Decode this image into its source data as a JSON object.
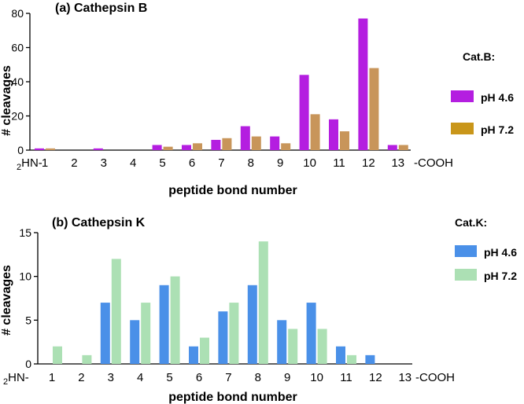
{
  "chart_data": [
    {
      "type": "bar",
      "title": "(a) Cathepsin B",
      "xlabel": "peptide bond number",
      "ylabel": "# cleavages",
      "n_terminus_label": "2HN-",
      "c_terminus_label": "-COOH",
      "categories": [
        "1",
        "2",
        "3",
        "4",
        "5",
        "6",
        "7",
        "8",
        "9",
        "10",
        "11",
        "12",
        "13"
      ],
      "ylim": [
        0,
        80
      ],
      "yticks": [
        "0",
        "20",
        "40",
        "60",
        "80"
      ],
      "legend_title": "Cat.B:",
      "series": [
        {
          "name": "pH 4.6",
          "color": "#b41ee0",
          "values": [
            1,
            0,
            1,
            0,
            3,
            3,
            6,
            14,
            8,
            44,
            18,
            77,
            3
          ]
        },
        {
          "name": "pH 7.2",
          "color": "#c8955a",
          "legend_color": "#c9961a",
          "values": [
            1,
            0,
            0,
            0,
            2,
            4,
            7,
            8,
            4,
            21,
            11,
            48,
            3
          ]
        }
      ]
    },
    {
      "type": "bar",
      "title": "(b) Cathepsin K",
      "xlabel": "peptide bond number",
      "ylabel": "# cleavages",
      "n_terminus_label": "2HN-",
      "c_terminus_label": "-COOH",
      "categories": [
        "1",
        "2",
        "3",
        "4",
        "5",
        "6",
        "7",
        "8",
        "9",
        "10",
        "11",
        "12",
        "13"
      ],
      "ylim": [
        0,
        15
      ],
      "yticks": [
        "0",
        "5",
        "10",
        "15"
      ],
      "legend_title": "Cat.K:",
      "series": [
        {
          "name": "pH 4.6",
          "color": "#4a90e8",
          "values": [
            0,
            0,
            7,
            5,
            9,
            2,
            6,
            9,
            5,
            7,
            2,
            1,
            0
          ]
        },
        {
          "name": "pH 7.2",
          "color": "#ace0b4",
          "values": [
            2,
            1,
            12,
            7,
            10,
            3,
            7,
            14,
            4,
            4,
            1,
            0,
            0
          ]
        }
      ]
    }
  ]
}
